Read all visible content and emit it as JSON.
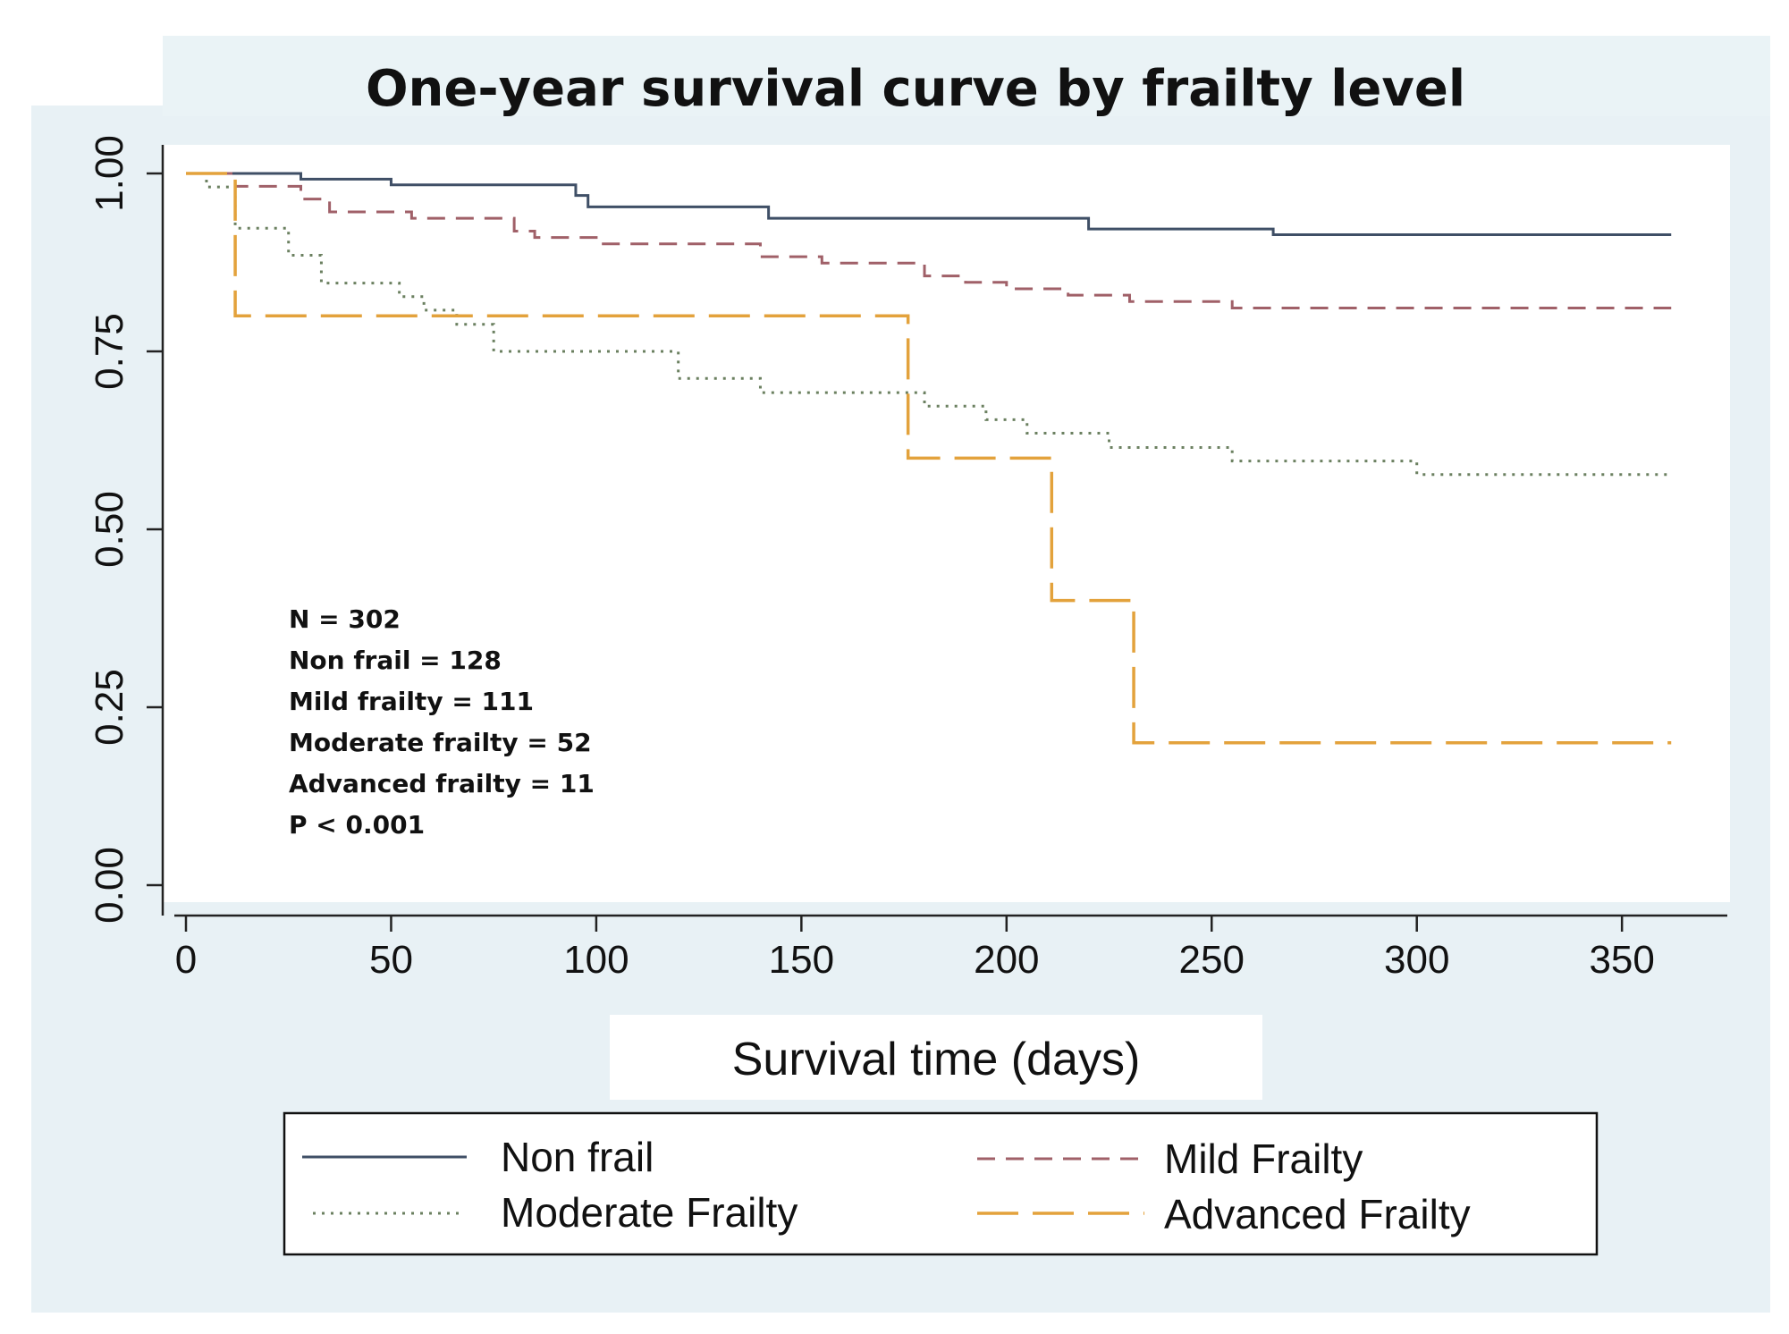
{
  "chart_data": {
    "type": "line",
    "title": "One-year survival curve by frailty level",
    "xlabel": "Survival time (days)",
    "ylabel": "",
    "xlim": [
      0,
      365
    ],
    "ylim": [
      0,
      1
    ],
    "x_ticks": [
      0,
      50,
      100,
      150,
      200,
      250,
      300,
      350
    ],
    "x_tick_labels": [
      "0",
      "50",
      "100",
      "150",
      "200",
      "250",
      "300",
      "350"
    ],
    "y_ticks": [
      0,
      0.25,
      0.5,
      0.75,
      1.0
    ],
    "y_tick_labels": [
      "0.00",
      "0.25",
      "0.50",
      "0.75",
      "1.00"
    ],
    "grid": false,
    "legend_position": "bottom",
    "annotations": [
      "N = 302",
      "Non frail = 128",
      "Mild frailty = 111",
      "Moderate frailty = 52",
      "Advanced frailty = 11",
      "P < 0.001"
    ],
    "series": [
      {
        "name": "Non frail",
        "color": "#3f4f66",
        "style": "solid",
        "x": [
          0,
          28,
          50,
          95,
          98,
          142,
          220,
          265,
          362
        ],
        "y": [
          1.0,
          0.992,
          0.984,
          0.969,
          0.953,
          0.937,
          0.922,
          0.914,
          0.914
        ]
      },
      {
        "name": "Mild Frailty",
        "color": "#a06068",
        "style": "dash",
        "x": [
          0,
          12,
          28,
          35,
          50,
          55,
          80,
          85,
          100,
          140,
          155,
          180,
          190,
          200,
          215,
          230,
          255,
          362
        ],
        "y": [
          1.0,
          0.982,
          0.964,
          0.946,
          0.946,
          0.937,
          0.919,
          0.91,
          0.901,
          0.883,
          0.874,
          0.856,
          0.847,
          0.838,
          0.829,
          0.82,
          0.811,
          0.811
        ]
      },
      {
        "name": "Moderate Frailty",
        "color": "#6b8060",
        "style": "dot",
        "x": [
          0,
          5,
          12,
          25,
          33,
          52,
          58,
          66,
          75,
          120,
          140,
          180,
          195,
          205,
          225,
          255,
          300,
          362
        ],
        "y": [
          1.0,
          0.981,
          0.923,
          0.885,
          0.846,
          0.827,
          0.808,
          0.788,
          0.75,
          0.712,
          0.692,
          0.673,
          0.654,
          0.635,
          0.615,
          0.596,
          0.577,
          0.577
        ]
      },
      {
        "name": "Advanced Frailty",
        "color": "#e3a23c",
        "style": "longdash",
        "x": [
          0,
          12,
          176,
          211,
          231,
          362
        ],
        "y": [
          1.0,
          0.8,
          0.6,
          0.4,
          0.2,
          0.2
        ]
      }
    ]
  }
}
